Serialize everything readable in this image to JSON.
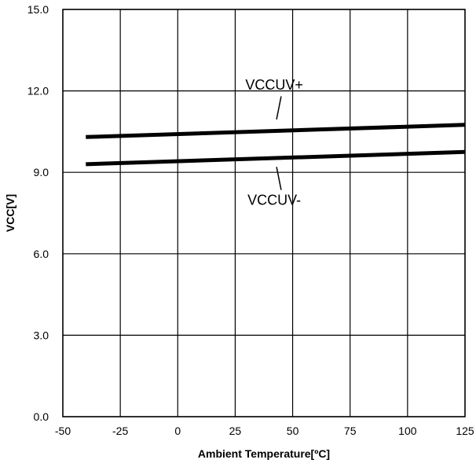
{
  "chart_data": {
    "type": "line",
    "xlabel": "Ambient Temperature[ºC]",
    "ylabel": "VCC[V]",
    "xlim": [
      -50,
      125
    ],
    "ylim": [
      0.0,
      15.0
    ],
    "x_ticks": [
      "-50",
      "-25",
      "0",
      "25",
      "50",
      "75",
      "100",
      "125"
    ],
    "y_ticks": [
      "0.0",
      "3.0",
      "6.0",
      "9.0",
      "12.0",
      "15.0"
    ],
    "grid": true,
    "series": [
      {
        "name": "VCCUV+",
        "x": [
          -40,
          125
        ],
        "y": [
          10.3,
          10.75
        ]
      },
      {
        "name": "VCCUV-",
        "x": [
          -40,
          125
        ],
        "y": [
          9.3,
          9.75
        ]
      }
    ],
    "annotations": [
      {
        "text": "VCCUV+",
        "series": 0
      },
      {
        "text": "VCCUV-",
        "series": 1
      }
    ]
  }
}
